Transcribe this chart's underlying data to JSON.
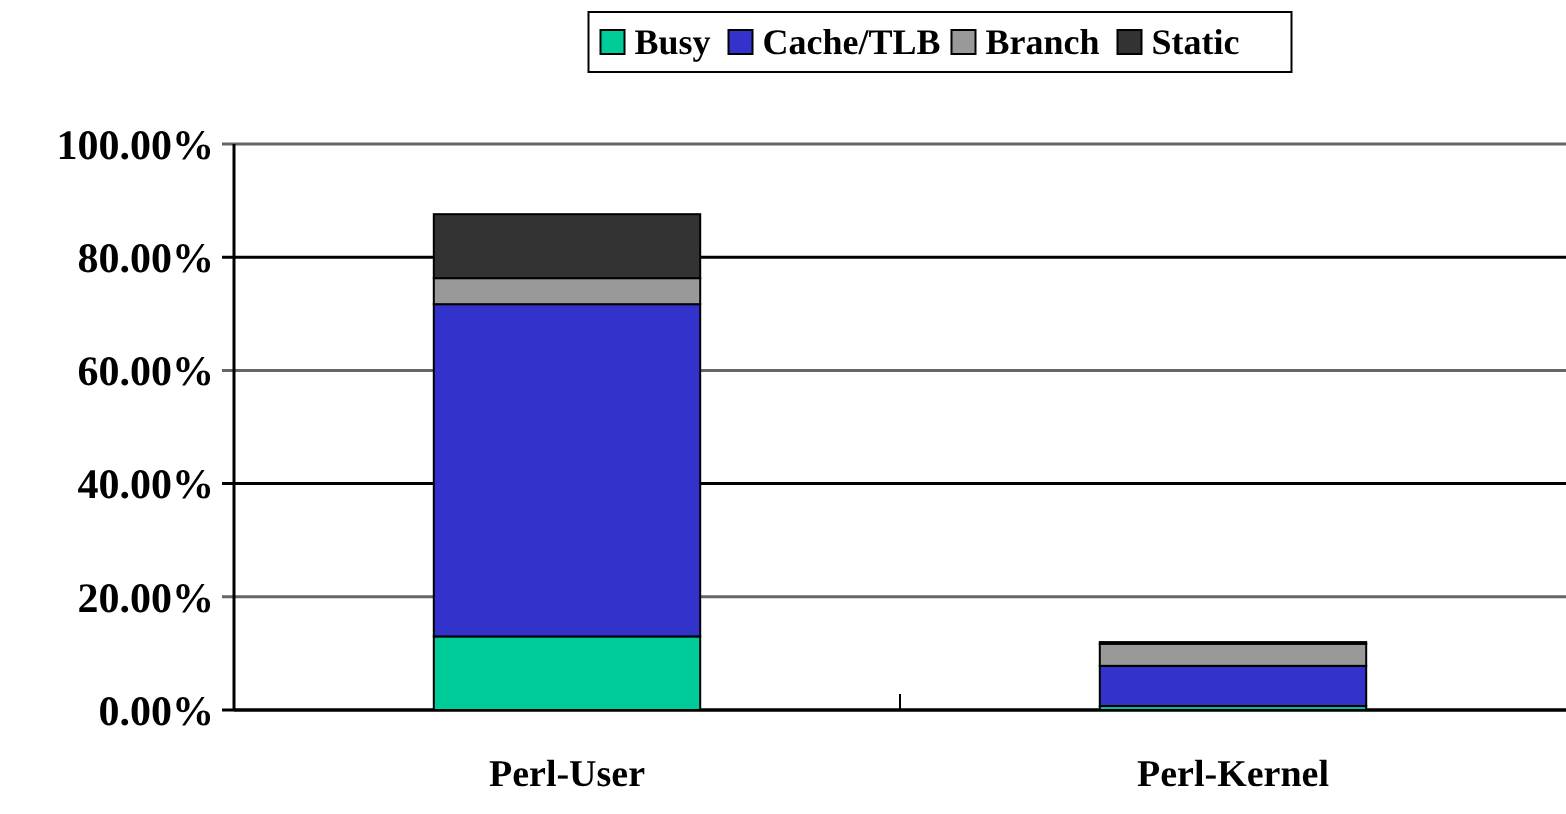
{
  "chart_data": {
    "type": "bar",
    "stacked": true,
    "categories": [
      "Perl-User",
      "Perl-Kernel"
    ],
    "series": [
      {
        "name": "Busy",
        "color": "#00cc99",
        "values": [
          13,
          0.7
        ]
      },
      {
        "name": "Cache/TLB",
        "color": "#3333cc",
        "values": [
          58.7,
          7.1
        ]
      },
      {
        "name": "Branch",
        "color": "#999999",
        "values": [
          4.6,
          3.9
        ]
      },
      {
        "name": "Static",
        "color": "#333333",
        "values": [
          11.3,
          0.3
        ]
      }
    ],
    "ylim": [
      0,
      100
    ],
    "yticks": [
      {
        "value": 0,
        "label": "0.00%"
      },
      {
        "value": 20,
        "label": "20.00%"
      },
      {
        "value": 40,
        "label": "40.00%"
      },
      {
        "value": 60,
        "label": "60.00%"
      },
      {
        "value": 80,
        "label": "80.00%"
      },
      {
        "value": 100,
        "label": "100.00%"
      }
    ],
    "grid": "y",
    "legend": "top"
  }
}
